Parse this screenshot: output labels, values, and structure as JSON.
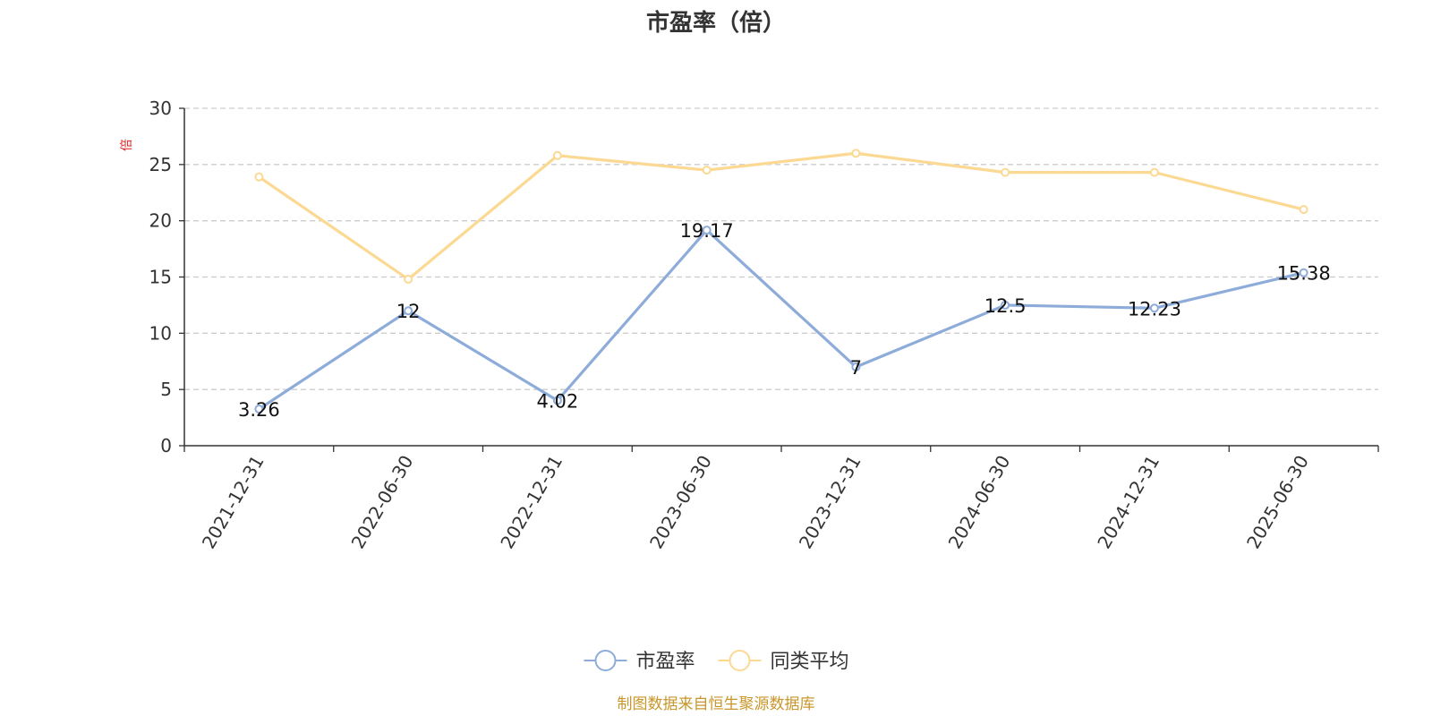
{
  "chart_data": {
    "type": "line",
    "title": "市盈率（倍）",
    "ylabel": "倍",
    "xlabel": "",
    "ylim": [
      0,
      30
    ],
    "yticks": [
      0,
      5,
      10,
      15,
      20,
      25,
      30
    ],
    "grid": true,
    "legend_position": "bottom-center",
    "categories": [
      "2021-12-31",
      "2022-06-30",
      "2022-12-31",
      "2023-06-30",
      "2023-12-31",
      "2024-06-30",
      "2024-12-31",
      "2025-06-30"
    ],
    "series": [
      {
        "name": "市盈率",
        "color": "#8eacd9",
        "values": [
          3.26,
          12,
          4.02,
          19.17,
          7,
          12.5,
          12.23,
          15.38
        ],
        "labels": [
          "3.26",
          "12",
          "4.02",
          "19.17",
          "7",
          "12.5",
          "12.23",
          "15.38"
        ],
        "show_labels": true
      },
      {
        "name": "同类平均",
        "color": "#fbd992",
        "values": [
          23.9,
          14.8,
          25.8,
          24.5,
          26.0,
          24.3,
          24.3,
          21.0
        ],
        "show_labels": false
      }
    ],
    "source": "制图数据来自恒生聚源数据库"
  }
}
